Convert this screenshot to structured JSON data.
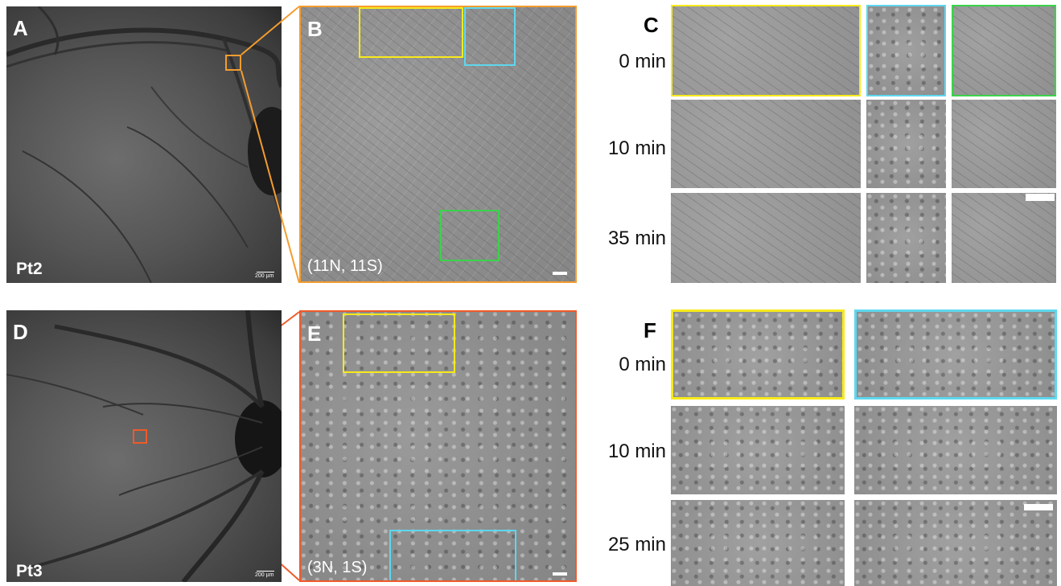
{
  "colors": {
    "yellow": "#f7ea1a",
    "cyan": "#5ed7ee",
    "green": "#3bd34a",
    "orange_top": "#f39c2f",
    "orange_bottom": "#ef5a2a"
  },
  "top": {
    "panel_a": {
      "letter": "A",
      "patient": "Pt2",
      "scale_label": "200 µm"
    },
    "panel_b": {
      "letter": "B",
      "coords": "(11N, 11S)"
    },
    "panel_c": {
      "letter": "C",
      "times": [
        "0  min",
        "10 min",
        "35 min"
      ]
    }
  },
  "bottom": {
    "panel_d": {
      "letter": "D",
      "patient": "Pt3",
      "scale_label": "200 µm"
    },
    "panel_e": {
      "letter": "E",
      "coords": "(3N, 1S)"
    },
    "panel_f": {
      "letter": "F",
      "times": [
        "0  min",
        "10 min",
        "25 min"
      ]
    }
  }
}
